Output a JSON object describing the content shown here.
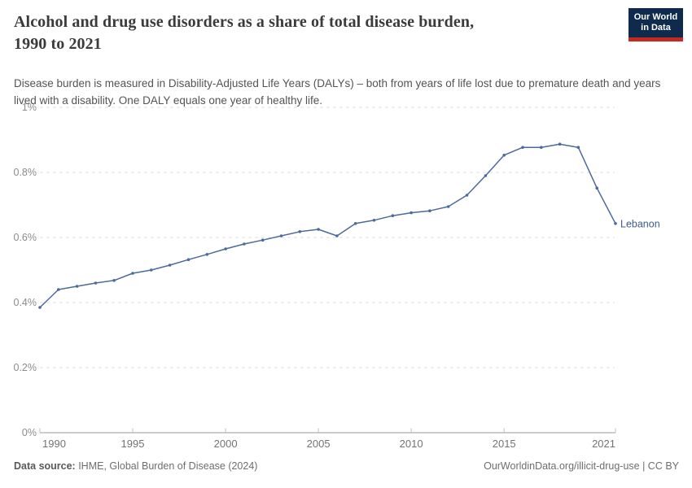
{
  "header": {
    "title_line1": "Alcohol and drug use disorders as a share of total disease burden,",
    "title_line2": "1990 to 2021",
    "subtitle": "Disease burden is measured in Disability-Adjusted Life Years (DALYs) – both from years of life lost due to premature death and years lived with a disability. One DALY equals one year of healthy life."
  },
  "logo": {
    "line1": "Our World",
    "line2": "in Data",
    "bg_color": "#0e2a4d",
    "accent_color": "#c7291f"
  },
  "chart_data": {
    "type": "line",
    "title": "Alcohol and drug use disorders as a share of total disease burden, 1990 to 2021",
    "unit": "%",
    "x": [
      1990,
      1991,
      1992,
      1993,
      1994,
      1995,
      1996,
      1997,
      1998,
      1999,
      2000,
      2001,
      2002,
      2003,
      2004,
      2005,
      2006,
      2007,
      2008,
      2009,
      2010,
      2011,
      2012,
      2013,
      2014,
      2015,
      2016,
      2017,
      2018,
      2019,
      2020,
      2021
    ],
    "series": [
      {
        "name": "Lebanon",
        "values": [
          0.385,
          0.44,
          0.45,
          0.46,
          0.468,
          0.49,
          0.5,
          0.515,
          0.532,
          0.548,
          0.565,
          0.58,
          0.592,
          0.605,
          0.618,
          0.625,
          0.605,
          0.643,
          0.653,
          0.667,
          0.676,
          0.682,
          0.695,
          0.73,
          0.79,
          0.853,
          0.877,
          0.877,
          0.887,
          0.877,
          0.752,
          0.643
        ]
      }
    ],
    "ylim": [
      0,
      1
    ],
    "yticks": [
      {
        "value": 0,
        "label": "0%"
      },
      {
        "value": 0.2,
        "label": "0.2%"
      },
      {
        "value": 0.4,
        "label": "0.4%"
      },
      {
        "value": 0.6,
        "label": "0.6%"
      },
      {
        "value": 0.8,
        "label": "0.8%"
      },
      {
        "value": 1,
        "label": "1%"
      }
    ],
    "xticks": [
      1990,
      1995,
      2000,
      2005,
      2010,
      2015,
      2021
    ],
    "grid": "dashed horizontal",
    "legend_position": "end-of-line label",
    "line_color": "#4c6a9c",
    "entity_label_color": "#3d5c87"
  },
  "footer": {
    "source_label": "Data source:",
    "source_text": " IHME, Global Burden of Disease (2024)",
    "license_text": "OurWorldinData.org/illicit-drug-use | CC BY"
  }
}
